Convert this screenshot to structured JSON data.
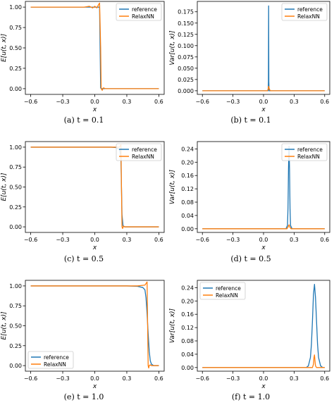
{
  "figure": {
    "captions": [
      "(a) t = 0.1",
      "(b) t = 0.1",
      "(c) t = 0.5",
      "(d) t = 0.5",
      "(e) t = 1.0",
      "(f) t = 1.0"
    ]
  },
  "colors": {
    "reference": "#1f77b4",
    "relaxnn": "#ff7f0e"
  },
  "chart_data": [
    {
      "panel": "a",
      "type": "line",
      "xlabel": "x",
      "ylabel": "E[u(t, x)]",
      "xlim": [
        -0.65,
        0.65
      ],
      "ylim": [
        -0.07,
        1.07
      ],
      "xticks": [
        -0.6,
        -0.3,
        0.0,
        0.3,
        0.6
      ],
      "xtick_labels": [
        "−0.6",
        "−0.3",
        "0.0",
        "0.3",
        "0.6"
      ],
      "yticks": [
        0.0,
        0.25,
        0.5,
        0.75,
        1.0
      ],
      "ytick_labels": [
        "0.00",
        "0.25",
        "0.50",
        "0.75",
        "1.00"
      ],
      "legend": "top-right",
      "series": [
        {
          "name": "reference",
          "x": [
            -0.6,
            0.0,
            0.04,
            0.045,
            0.05,
            0.055,
            0.06,
            0.6
          ],
          "y": [
            1.0,
            1.0,
            1.0,
            0.99,
            0.5,
            0.01,
            0.0,
            0.0
          ]
        },
        {
          "name": "RelaxNN",
          "x": [
            -0.6,
            -0.1,
            -0.05,
            -0.02,
            0.0,
            0.02,
            0.035,
            0.045,
            0.055,
            0.06,
            0.07,
            0.08,
            0.1,
            0.6
          ],
          "y": [
            1.0,
            1.0,
            1.01,
            0.99,
            1.01,
            0.99,
            1.03,
            1.05,
            0.5,
            0.0,
            -0.02,
            0.01,
            0.0,
            0.0
          ]
        }
      ]
    },
    {
      "panel": "b",
      "type": "line",
      "xlabel": "x",
      "ylabel": "Var[u(t, x)]",
      "xlim": [
        -0.65,
        0.65
      ],
      "ylim": [
        -0.008,
        0.198
      ],
      "xticks": [
        -0.6,
        -0.3,
        0.0,
        0.3,
        0.6
      ],
      "xtick_labels": [
        "−0.6",
        "−0.3",
        "0.0",
        "0.3",
        "0.6"
      ],
      "yticks": [
        0.0,
        0.025,
        0.05,
        0.075,
        0.1,
        0.125,
        0.15,
        0.175
      ],
      "ytick_labels": [
        "0.000",
        "0.025",
        "0.050",
        "0.075",
        "0.100",
        "0.125",
        "0.150",
        "0.175"
      ],
      "legend": "top-right",
      "series": [
        {
          "name": "reference",
          "x": [
            -0.6,
            0.04,
            0.045,
            0.048,
            0.05,
            0.052,
            0.055,
            0.06,
            0.6
          ],
          "y": [
            0.0,
            0.0,
            0.0,
            0.02,
            0.188,
            0.02,
            0.0,
            0.0,
            0.0
          ]
        },
        {
          "name": "RelaxNN",
          "x": [
            -0.6,
            0.04,
            0.045,
            0.05,
            0.055,
            0.06,
            0.07,
            0.6
          ],
          "y": [
            0.0,
            0.0,
            0.004,
            0.01,
            0.006,
            0.002,
            0.0,
            0.0
          ]
        }
      ]
    },
    {
      "panel": "c",
      "type": "line",
      "xlabel": "x",
      "ylabel": "E[u(t, x)]",
      "xlim": [
        -0.65,
        0.65
      ],
      "ylim": [
        -0.07,
        1.07
      ],
      "xticks": [
        -0.6,
        -0.3,
        0.0,
        0.3,
        0.6
      ],
      "xtick_labels": [
        "−0.6",
        "−0.3",
        "0.0",
        "0.3",
        "0.6"
      ],
      "yticks": [
        0.0,
        0.25,
        0.5,
        0.75,
        1.0
      ],
      "ytick_labels": [
        "0.00",
        "0.25",
        "0.50",
        "0.75",
        "1.00"
      ],
      "legend": "top-right",
      "series": [
        {
          "name": "reference",
          "x": [
            -0.6,
            0.15,
            0.2,
            0.22,
            0.235,
            0.245,
            0.25,
            0.255,
            0.265,
            0.28,
            0.6
          ],
          "y": [
            1.0,
            1.0,
            0.995,
            0.98,
            0.96,
            0.85,
            0.5,
            0.15,
            0.01,
            0.0,
            0.0
          ]
        },
        {
          "name": "RelaxNN",
          "x": [
            -0.6,
            0.2,
            0.23,
            0.24,
            0.245,
            0.25,
            0.255,
            0.26,
            0.27,
            0.28,
            0.6
          ],
          "y": [
            1.0,
            1.0,
            1.0,
            1.02,
            1.03,
            0.5,
            0.0,
            -0.02,
            0.01,
            0.0,
            0.0
          ]
        }
      ]
    },
    {
      "panel": "d",
      "type": "line",
      "xlabel": "x",
      "ylabel": "Var[u(t, x)]",
      "xlim": [
        -0.65,
        0.65
      ],
      "ylim": [
        -0.011,
        0.262
      ],
      "xticks": [
        -0.6,
        -0.3,
        0.0,
        0.3,
        0.6
      ],
      "xtick_labels": [
        "−0.6",
        "−0.3",
        "0.0",
        "0.3",
        "0.6"
      ],
      "yticks": [
        0.0,
        0.04,
        0.08,
        0.12,
        0.16,
        0.2,
        0.24
      ],
      "ytick_labels": [
        "0.00",
        "0.04",
        "0.08",
        "0.12",
        "0.16",
        "0.20",
        "0.24"
      ],
      "legend": "top-right",
      "series": [
        {
          "name": "reference",
          "x": [
            -0.6,
            0.22,
            0.235,
            0.24,
            0.245,
            0.25,
            0.255,
            0.26,
            0.265,
            0.28,
            0.6
          ],
          "y": [
            0.0,
            0.0,
            0.01,
            0.06,
            0.18,
            0.248,
            0.18,
            0.06,
            0.01,
            0.0,
            0.0
          ]
        },
        {
          "name": "RelaxNN",
          "x": [
            -0.6,
            0.23,
            0.24,
            0.25,
            0.255,
            0.26,
            0.27,
            0.6
          ],
          "y": [
            0.0,
            0.0,
            0.005,
            0.012,
            0.008,
            0.004,
            0.0,
            0.0
          ]
        }
      ]
    },
    {
      "panel": "e",
      "type": "line",
      "xlabel": "x",
      "ylabel": "E[u(t, x)]",
      "xlim": [
        -0.65,
        0.65
      ],
      "ylim": [
        -0.07,
        1.07
      ],
      "xticks": [
        -0.6,
        -0.3,
        0.0,
        0.3,
        0.6
      ],
      "xtick_labels": [
        "−0.6",
        "−0.3",
        "0.0",
        "0.3",
        "0.6"
      ],
      "yticks": [
        0.0,
        0.25,
        0.5,
        0.75,
        1.0
      ],
      "ytick_labels": [
        "0.00",
        "0.25",
        "0.50",
        "0.75",
        "1.00"
      ],
      "legend": "lower-left",
      "series": [
        {
          "name": "reference",
          "x": [
            -0.6,
            0.3,
            0.4,
            0.45,
            0.47,
            0.48,
            0.49,
            0.5,
            0.51,
            0.52,
            0.53,
            0.55,
            0.6
          ],
          "y": [
            1.0,
            1.0,
            0.995,
            0.98,
            0.95,
            0.85,
            0.65,
            0.4,
            0.18,
            0.06,
            0.02,
            0.0,
            0.0
          ]
        },
        {
          "name": "RelaxNN",
          "x": [
            -0.6,
            0.4,
            0.47,
            0.48,
            0.49,
            0.495,
            0.5,
            0.505,
            0.51,
            0.52,
            0.53,
            0.6
          ],
          "y": [
            1.0,
            1.0,
            1.01,
            1.03,
            1.05,
            0.5,
            0.0,
            -0.03,
            0.0,
            0.01,
            0.0,
            0.0
          ]
        }
      ]
    },
    {
      "panel": "f",
      "type": "line",
      "xlabel": "x",
      "ylabel": "Var[u(t, x)]",
      "xlim": [
        -0.65,
        0.65
      ],
      "ylim": [
        -0.011,
        0.262
      ],
      "xticks": [
        -0.6,
        -0.3,
        0.0,
        0.3,
        0.6
      ],
      "xtick_labels": [
        "−0.6",
        "−0.3",
        "0.0",
        "0.3",
        "0.6"
      ],
      "yticks": [
        0.0,
        0.04,
        0.08,
        0.12,
        0.16,
        0.2,
        0.24
      ],
      "ytick_labels": [
        "0.00",
        "0.04",
        "0.08",
        "0.12",
        "0.16",
        "0.20",
        "0.24"
      ],
      "legend": "top-left",
      "series": [
        {
          "name": "reference",
          "x": [
            -0.6,
            0.42,
            0.44,
            0.46,
            0.47,
            0.48,
            0.49,
            0.5,
            0.51,
            0.52,
            0.53,
            0.54,
            0.56,
            0.58,
            0.6
          ],
          "y": [
            0.0,
            0.0,
            0.005,
            0.03,
            0.07,
            0.14,
            0.22,
            0.25,
            0.21,
            0.14,
            0.07,
            0.03,
            0.005,
            0.0,
            0.0
          ]
        },
        {
          "name": "RelaxNN",
          "x": [
            -0.6,
            0.48,
            0.49,
            0.495,
            0.5,
            0.505,
            0.51,
            0.52,
            0.6
          ],
          "y": [
            0.0,
            0.0,
            0.01,
            0.03,
            0.038,
            0.02,
            0.005,
            0.0,
            0.0
          ]
        }
      ]
    }
  ]
}
